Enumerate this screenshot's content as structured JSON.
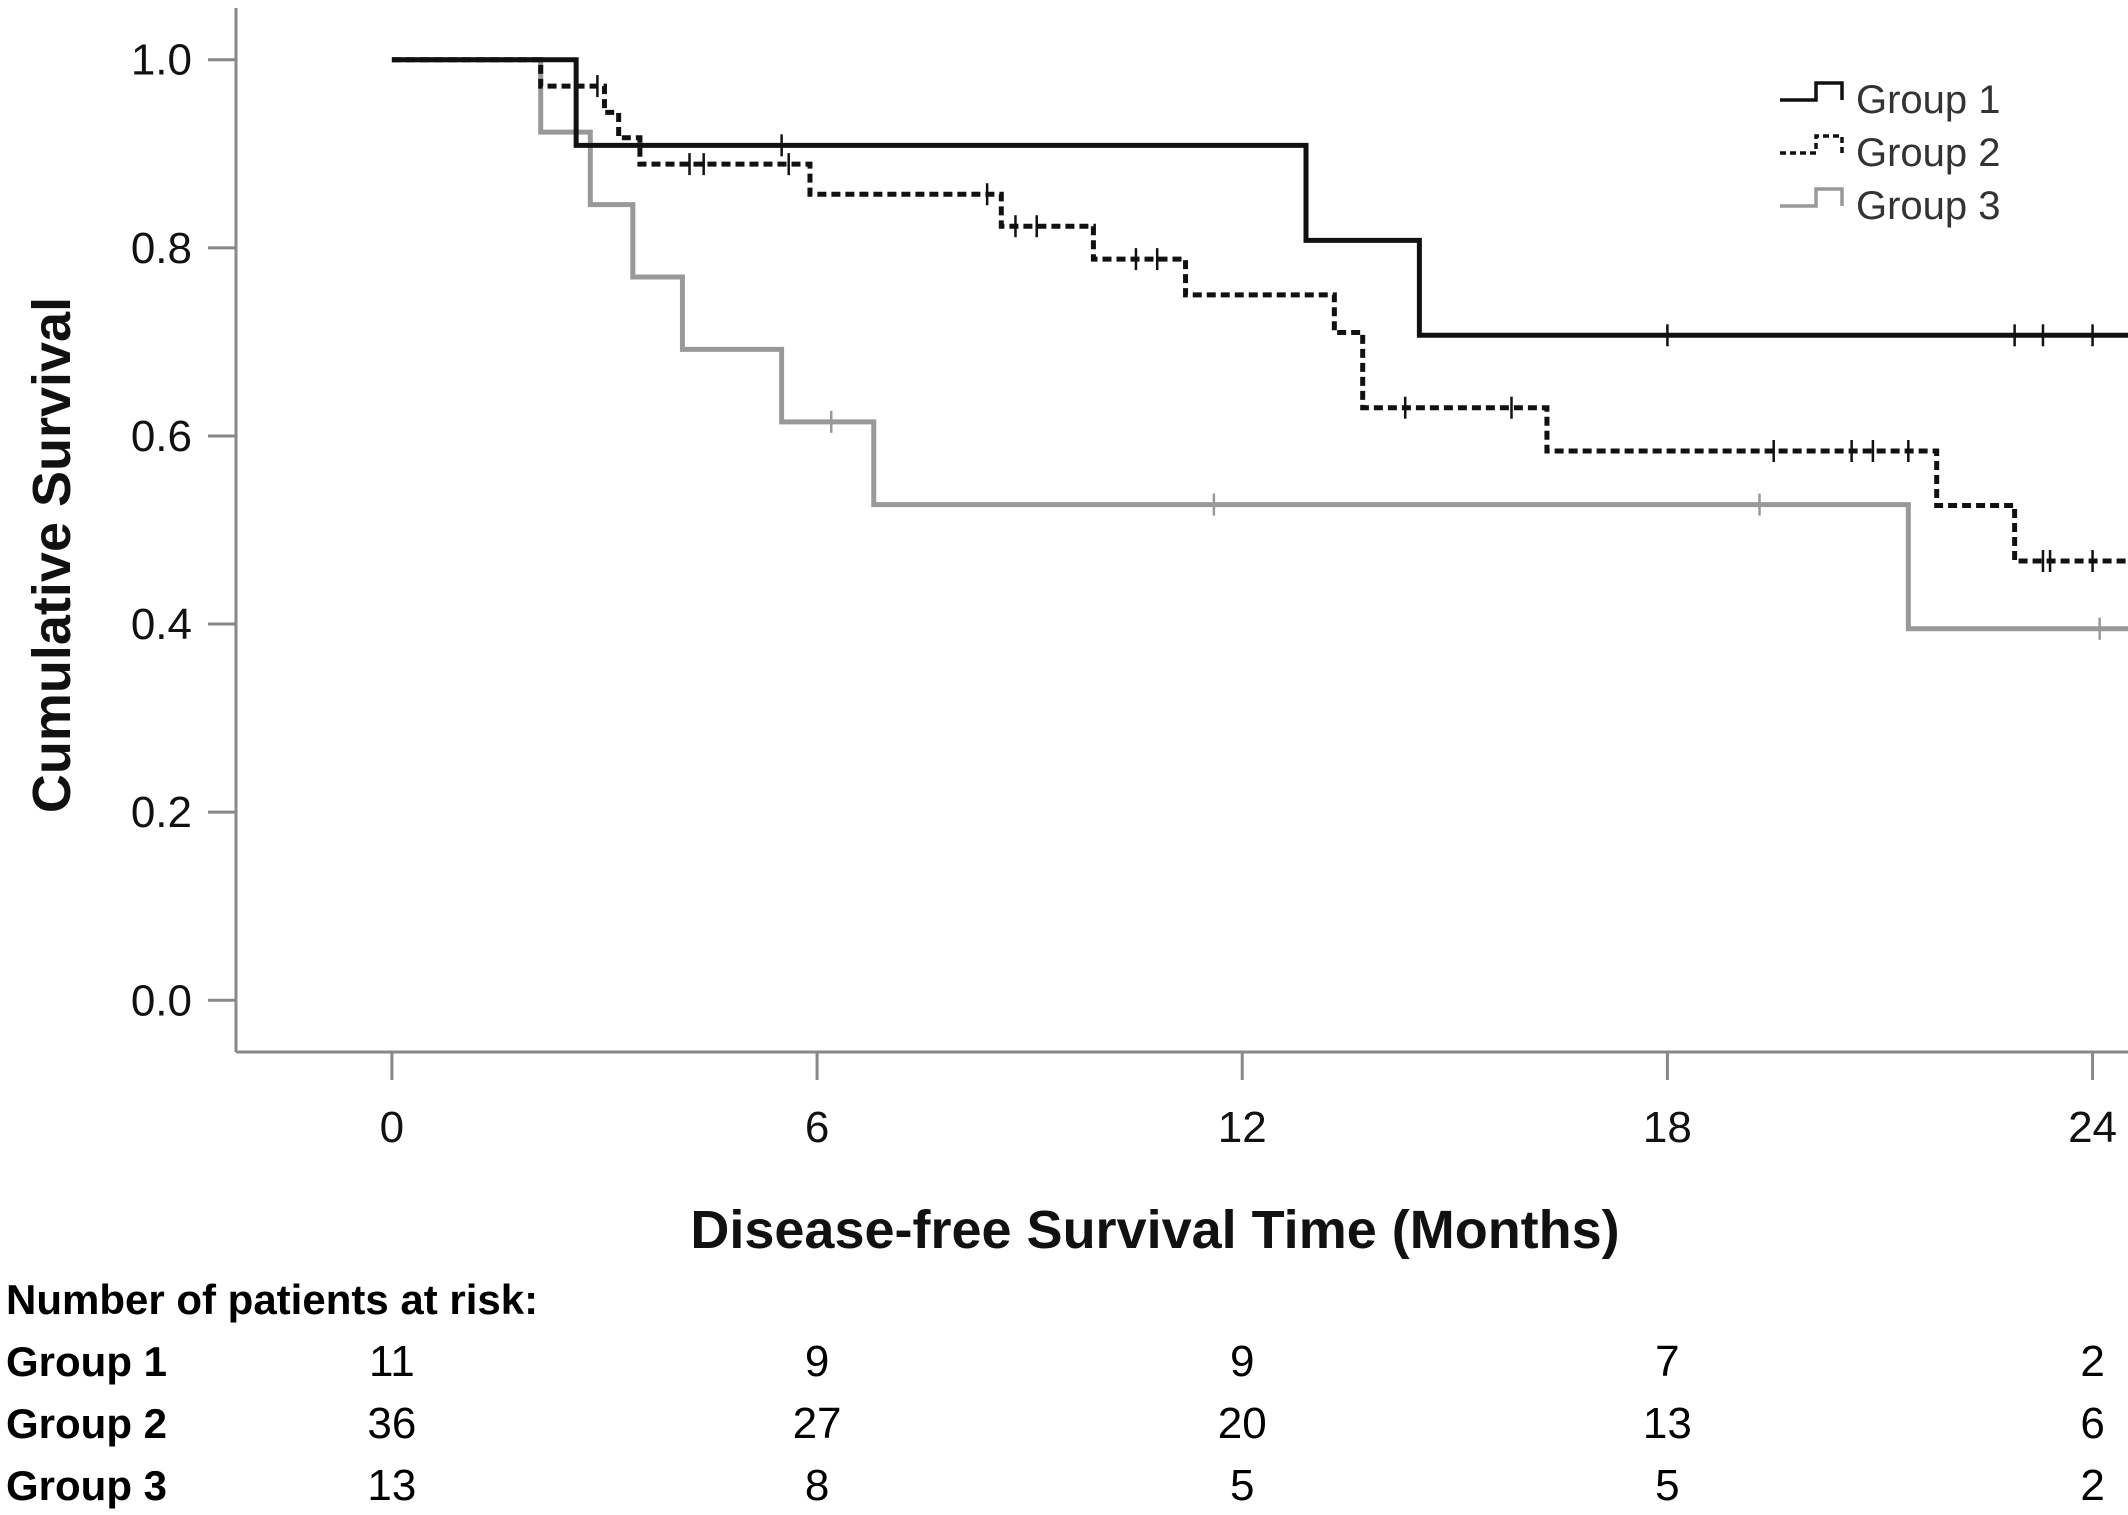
{
  "chart_data": {
    "type": "line",
    "subtype": "kaplan-meier step",
    "title": "",
    "xlabel": "Disease-free Survival Time (Months)",
    "ylabel": "Cumulative Survival",
    "xlim": [
      -2.2,
      24.5
    ],
    "ylim": [
      -0.055,
      1.055
    ],
    "x_ticks": [
      0,
      6,
      12,
      18,
      24
    ],
    "x_tick_labels": [
      "0",
      "6",
      "12",
      "18",
      "24"
    ],
    "y_ticks": [
      0.0,
      0.2,
      0.4,
      0.6,
      0.8,
      1.0
    ],
    "y_tick_labels": [
      "0.0",
      "0.2",
      "0.4",
      "0.6",
      "0.8",
      "1.0"
    ],
    "grid": false,
    "legend_position": "top-right",
    "series": [
      {
        "name": "Group 1",
        "color": "#111111",
        "style": "solid",
        "steps": [
          [
            0,
            1.0
          ],
          [
            2.6,
            0.909
          ],
          [
            12.9,
            0.808
          ],
          [
            14.5,
            0.707
          ],
          [
            24.5,
            0.707
          ]
        ],
        "censored": [
          [
            5.5,
            0.909
          ],
          [
            18.0,
            0.707
          ],
          [
            22.9,
            0.707
          ],
          [
            23.3,
            0.707
          ],
          [
            24.0,
            0.707
          ]
        ]
      },
      {
        "name": "Group 2",
        "color": "#111111",
        "style": "dotted",
        "steps": [
          [
            0,
            1.0
          ],
          [
            2.1,
            0.972
          ],
          [
            3.0,
            0.944
          ],
          [
            3.2,
            0.917
          ],
          [
            3.5,
            0.889
          ],
          [
            5.9,
            0.857
          ],
          [
            8.6,
            0.823
          ],
          [
            9.9,
            0.788
          ],
          [
            11.2,
            0.75
          ],
          [
            13.3,
            0.71
          ],
          [
            13.7,
            0.63
          ],
          [
            16.3,
            0.584
          ],
          [
            21.8,
            0.526
          ],
          [
            22.9,
            0.467
          ],
          [
            24.5,
            0.467
          ]
        ],
        "censored": [
          [
            2.9,
            0.972
          ],
          [
            4.2,
            0.889
          ],
          [
            4.4,
            0.889
          ],
          [
            5.6,
            0.889
          ],
          [
            8.4,
            0.857
          ],
          [
            8.8,
            0.823
          ],
          [
            9.1,
            0.823
          ],
          [
            10.5,
            0.788
          ],
          [
            10.8,
            0.788
          ],
          [
            14.3,
            0.63
          ],
          [
            15.8,
            0.63
          ],
          [
            19.5,
            0.584
          ],
          [
            20.6,
            0.584
          ],
          [
            20.9,
            0.584
          ],
          [
            21.4,
            0.584
          ],
          [
            23.3,
            0.467
          ],
          [
            23.4,
            0.467
          ],
          [
            24.0,
            0.467
          ]
        ]
      },
      {
        "name": "Group 3",
        "color": "#999999",
        "style": "solid",
        "steps": [
          [
            0,
            1.0
          ],
          [
            2.1,
            0.923
          ],
          [
            2.8,
            0.846
          ],
          [
            3.4,
            0.769
          ],
          [
            4.1,
            0.692
          ],
          [
            5.5,
            0.615
          ],
          [
            6.8,
            0.527
          ],
          [
            21.4,
            0.395
          ],
          [
            24.5,
            0.395
          ]
        ],
        "censored": [
          [
            6.2,
            0.615
          ],
          [
            11.6,
            0.527
          ],
          [
            19.3,
            0.527
          ],
          [
            24.1,
            0.395
          ]
        ]
      }
    ]
  },
  "risk_table": {
    "header": "Number of patients at risk:",
    "rows": [
      {
        "label": "Group 1",
        "values": [
          "11",
          "9",
          "9",
          "7",
          "2"
        ]
      },
      {
        "label": "Group 2",
        "values": [
          "36",
          "27",
          "20",
          "13",
          "6"
        ]
      },
      {
        "label": "Group 3",
        "values": [
          "13",
          "8",
          "5",
          "5",
          "2"
        ]
      }
    ]
  }
}
